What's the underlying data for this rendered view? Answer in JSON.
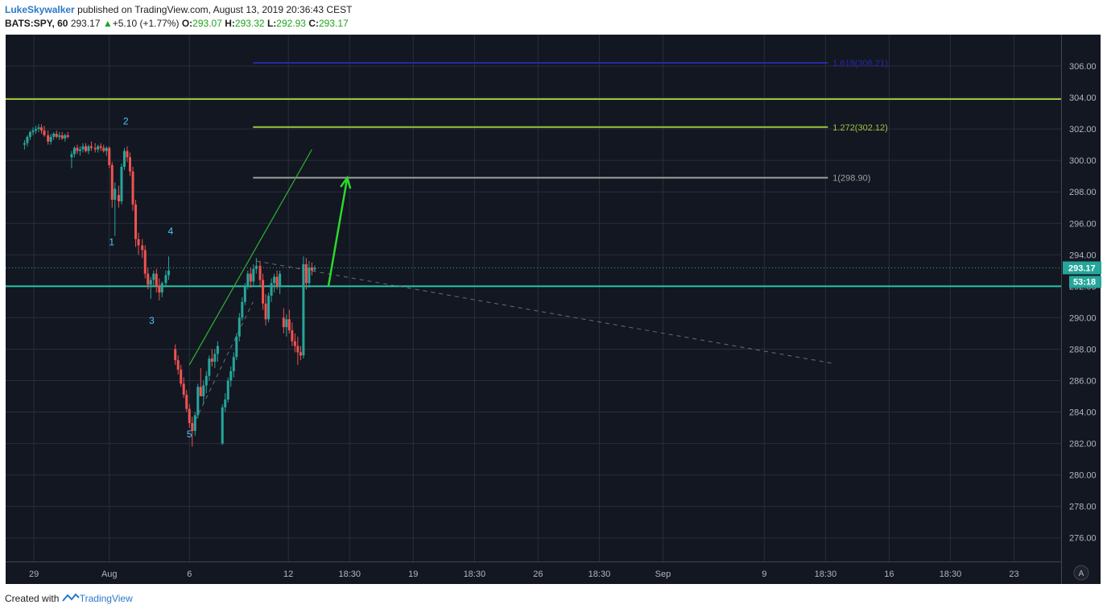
{
  "header": {
    "author": "LukeSkywalker",
    "published_text": "published on TradingView.com, August 13, 2019 20:36:43 CEST",
    "symbol": "BATS:SPY, 60",
    "last": "293.17",
    "change": "+5.10 (+1.77%)",
    "o_label": "O:",
    "o": "293.07",
    "h_label": "H:",
    "h": "293.32",
    "l_label": "L:",
    "l": "292.93",
    "c_label": "C:",
    "c": "293.17"
  },
  "footer": {
    "created_with": "Created with",
    "brand": "TradingView"
  },
  "colors": {
    "background": "#131722",
    "grid": "#2a2e39",
    "up_candle": "#26a69a",
    "down_candle": "#ef5350",
    "wave_label": "#4fc3f7",
    "price_tag": "#26a69a",
    "fib_1618": "#2929a8",
    "fib_1272": "#9bc53d",
    "fib_1": "#9e9e9e",
    "resistance": "#9bc53d",
    "support": "#26c6a8",
    "target_arrow": "#2bd92b",
    "channel": "#2db52d"
  },
  "chart_data": {
    "type": "candlestick",
    "ylim": [
      274.5,
      308
    ],
    "y_ticks": [
      "306.00",
      "304.00",
      "302.00",
      "300.00",
      "298.00",
      "296.00",
      "294.00",
      "292.00",
      "290.00",
      "288.00",
      "286.00",
      "284.00",
      "282.00",
      "280.00",
      "278.00",
      "276.00"
    ],
    "x_ticks": [
      {
        "t": 0.4,
        "label": "29"
      },
      {
        "t": 3.6,
        "label": "Aug"
      },
      {
        "t": 7.0,
        "label": "6"
      },
      {
        "t": 11.2,
        "label": "12"
      },
      {
        "t": 13.8,
        "label": "18:30"
      },
      {
        "t": 16.5,
        "label": "19"
      },
      {
        "t": 19.1,
        "label": "18:30"
      },
      {
        "t": 21.8,
        "label": "26"
      },
      {
        "t": 24.4,
        "label": "18:30"
      },
      {
        "t": 27.1,
        "label": "Sep"
      },
      {
        "t": 31.4,
        "label": "9"
      },
      {
        "t": 34.0,
        "label": "18:30"
      },
      {
        "t": 36.7,
        "label": "16"
      },
      {
        "t": 39.3,
        "label": "18:30"
      },
      {
        "t": 42.0,
        "label": "23"
      }
    ],
    "x_range": [
      -0.8,
      44.0
    ],
    "candles": [
      [
        0.0,
        301.0,
        301.3,
        300.7,
        301.1
      ],
      [
        0.12,
        301.1,
        301.6,
        300.9,
        301.5
      ],
      [
        0.24,
        301.5,
        301.9,
        301.3,
        301.8
      ],
      [
        0.36,
        301.8,
        302.1,
        301.6,
        301.9
      ],
      [
        0.48,
        301.9,
        302.2,
        301.7,
        302.0
      ],
      [
        0.6,
        302.0,
        302.3,
        301.8,
        302.1
      ],
      [
        0.72,
        302.1,
        302.3,
        301.7,
        301.9
      ],
      [
        0.84,
        301.9,
        302.2,
        301.5,
        301.6
      ],
      [
        1.0,
        301.6,
        301.9,
        301.0,
        301.2
      ],
      [
        1.12,
        301.2,
        301.7,
        301.0,
        301.5
      ],
      [
        1.24,
        301.5,
        301.8,
        301.3,
        301.7
      ],
      [
        1.36,
        301.7,
        301.9,
        301.4,
        301.5
      ],
      [
        1.48,
        301.5,
        301.8,
        301.3,
        301.6
      ],
      [
        1.6,
        301.6,
        301.8,
        301.3,
        301.4
      ],
      [
        1.72,
        301.4,
        301.7,
        301.2,
        301.6
      ],
      [
        1.84,
        301.6,
        301.8,
        301.4,
        301.5
      ],
      [
        2.0,
        300.2,
        300.6,
        299.5,
        300.4
      ],
      [
        2.12,
        300.4,
        300.9,
        300.2,
        300.8
      ],
      [
        2.24,
        300.8,
        301.0,
        300.4,
        300.6
      ],
      [
        2.36,
        300.6,
        300.9,
        300.3,
        300.7
      ],
      [
        2.48,
        300.7,
        301.1,
        300.5,
        300.9
      ],
      [
        2.6,
        300.9,
        301.1,
        300.5,
        300.6
      ],
      [
        2.72,
        300.6,
        301.0,
        300.4,
        300.9
      ],
      [
        2.84,
        300.9,
        301.2,
        300.6,
        300.8
      ],
      [
        3.0,
        300.8,
        301.1,
        300.5,
        300.7
      ],
      [
        3.12,
        300.7,
        301.0,
        300.5,
        300.9
      ],
      [
        3.24,
        300.9,
        301.1,
        300.6,
        300.8
      ],
      [
        3.36,
        300.8,
        301.0,
        300.5,
        300.6
      ],
      [
        3.48,
        300.6,
        300.9,
        300.3,
        300.8
      ],
      [
        3.6,
        300.8,
        300.9,
        299.5,
        299.7
      ],
      [
        3.72,
        299.7,
        299.9,
        297.0,
        297.5
      ],
      [
        3.84,
        297.5,
        298.6,
        295.2,
        298.2
      ],
      [
        4.0,
        297.8,
        298.4,
        297.0,
        297.4
      ],
      [
        4.12,
        297.4,
        299.8,
        297.2,
        299.6
      ],
      [
        4.24,
        299.6,
        300.8,
        299.4,
        300.6
      ],
      [
        4.36,
        300.6,
        300.9,
        299.9,
        300.2
      ],
      [
        4.48,
        300.2,
        300.5,
        299.0,
        299.3
      ],
      [
        4.6,
        299.3,
        299.6,
        296.8,
        297.2
      ],
      [
        4.72,
        297.2,
        297.5,
        294.5,
        295.0
      ],
      [
        4.84,
        295.0,
        295.4,
        294.0,
        294.6
      ],
      [
        5.0,
        294.6,
        295.0,
        293.8,
        294.3
      ],
      [
        5.12,
        294.3,
        294.6,
        292.5,
        292.8
      ],
      [
        5.24,
        292.8,
        293.2,
        291.8,
        292.1
      ],
      [
        5.36,
        292.1,
        292.6,
        291.2,
        292.4
      ],
      [
        5.48,
        292.4,
        293.0,
        292.0,
        292.8
      ],
      [
        5.6,
        292.8,
        293.1,
        291.6,
        292.0
      ],
      [
        5.72,
        292.0,
        292.5,
        291.1,
        291.6
      ],
      [
        5.84,
        291.6,
        292.3,
        291.3,
        292.2
      ],
      [
        6.0,
        292.2,
        293.0,
        292.0,
        292.7
      ],
      [
        6.12,
        292.7,
        293.9,
        292.4,
        293.0
      ],
      [
        6.4,
        288.0,
        288.3,
        287.0,
        287.3
      ],
      [
        6.52,
        287.3,
        287.6,
        286.4,
        286.7
      ],
      [
        6.64,
        286.7,
        287.0,
        285.6,
        285.8
      ],
      [
        6.76,
        285.8,
        286.2,
        284.9,
        285.1
      ],
      [
        6.88,
        285.1,
        285.4,
        284.0,
        284.2
      ],
      [
        7.0,
        284.2,
        284.5,
        283.0,
        283.3
      ],
      [
        7.12,
        283.3,
        283.7,
        281.8,
        282.8
      ],
      [
        7.24,
        282.8,
        284.0,
        282.5,
        283.8
      ],
      [
        7.36,
        283.8,
        285.8,
        283.6,
        285.6
      ],
      [
        7.48,
        285.6,
        286.8,
        285.2,
        285.0
      ],
      [
        7.6,
        285.0,
        286.0,
        284.5,
        285.7
      ],
      [
        7.72,
        285.7,
        286.6,
        285.2,
        286.3
      ],
      [
        7.84,
        286.3,
        287.6,
        286.0,
        287.4
      ],
      [
        7.96,
        287.4,
        288.0,
        286.9,
        287.2
      ],
      [
        8.08,
        287.2,
        288.0,
        286.8,
        287.7
      ],
      [
        8.2,
        287.7,
        288.5,
        287.2,
        288.2
      ],
      [
        8.4,
        282.0,
        284.5,
        281.9,
        284.3
      ],
      [
        8.52,
        284.3,
        285.2,
        284.0,
        284.8
      ],
      [
        8.64,
        284.8,
        286.2,
        284.6,
        286.0
      ],
      [
        8.76,
        286.0,
        286.9,
        285.6,
        286.6
      ],
      [
        8.88,
        286.6,
        287.8,
        286.2,
        287.5
      ],
      [
        9.0,
        287.5,
        289.0,
        287.3,
        288.8
      ],
      [
        9.12,
        288.8,
        290.3,
        288.5,
        290.0
      ],
      [
        9.24,
        290.0,
        291.3,
        289.8,
        291.0
      ],
      [
        9.36,
        291.0,
        292.2,
        290.8,
        292.0
      ],
      [
        9.48,
        292.0,
        293.0,
        291.8,
        292.8
      ],
      [
        9.6,
        292.8,
        293.2,
        291.9,
        292.3
      ],
      [
        9.72,
        292.3,
        293.4,
        292.0,
        293.1
      ],
      [
        9.84,
        293.1,
        293.8,
        292.8,
        293.3
      ],
      [
        10.0,
        293.3,
        293.6,
        292.0,
        292.4
      ],
      [
        10.12,
        292.4,
        292.8,
        290.5,
        290.9
      ],
      [
        10.24,
        290.9,
        291.5,
        289.5,
        289.9
      ],
      [
        10.36,
        289.9,
        291.6,
        289.7,
        291.4
      ],
      [
        10.48,
        291.4,
        292.5,
        291.0,
        292.2
      ],
      [
        10.6,
        292.2,
        292.8,
        291.6,
        292.6
      ],
      [
        10.72,
        292.6,
        293.0,
        291.8,
        292.0
      ],
      [
        10.84,
        292.0,
        293.0,
        291.5,
        292.8
      ],
      [
        11.0,
        290.0,
        290.6,
        289.0,
        289.4
      ],
      [
        11.12,
        289.4,
        290.2,
        288.8,
        289.9
      ],
      [
        11.24,
        289.9,
        290.5,
        289.0,
        289.2
      ],
      [
        11.36,
        289.2,
        289.7,
        288.2,
        288.5
      ],
      [
        11.48,
        288.5,
        289.0,
        287.8,
        288.2
      ],
      [
        11.6,
        288.2,
        288.8,
        287.0,
        287.8
      ],
      [
        11.72,
        287.8,
        288.2,
        287.3,
        287.6
      ],
      [
        11.84,
        287.6,
        293.9,
        287.4,
        293.4
      ],
      [
        11.96,
        293.4,
        293.8,
        291.8,
        292.2
      ],
      [
        12.08,
        292.2,
        293.6,
        291.9,
        293.2
      ],
      [
        12.2,
        293.2,
        293.5,
        292.7,
        293.0
      ],
      [
        12.32,
        293.07,
        293.32,
        292.93,
        293.17
      ]
    ],
    "levels": [
      {
        "name": "resistance",
        "y": 303.9,
        "x_from": -0.8,
        "x_to": 44.0,
        "label": ""
      },
      {
        "name": "fib-1618",
        "y": 306.21,
        "x_from": 9.7,
        "x_to": 34.1,
        "label": "1.618(306.21)"
      },
      {
        "name": "fib-1272",
        "y": 302.12,
        "x_from": 9.7,
        "x_to": 34.1,
        "label": "1.272(302.12)"
      },
      {
        "name": "fib-1",
        "y": 298.9,
        "x_from": 9.7,
        "x_to": 34.1,
        "label": "1(298.90)"
      },
      {
        "name": "support",
        "y": 292.0,
        "x_from": -0.8,
        "x_to": 44.0,
        "label": ""
      }
    ],
    "current_price": {
      "value": 293.17,
      "label": "293.17"
    },
    "countdown": {
      "label": "53:18"
    },
    "wave_labels": [
      {
        "t": 4.3,
        "y": 302.3,
        "label": "2"
      },
      {
        "t": 3.7,
        "y": 294.6,
        "label": "1"
      },
      {
        "t": 6.2,
        "y": 295.3,
        "label": "4"
      },
      {
        "t": 5.4,
        "y": 289.6,
        "label": "3"
      },
      {
        "t": 7.0,
        "y": 282.4,
        "label": "5"
      }
    ],
    "channel_line": {
      "from": [
        7.0,
        287.0
      ],
      "to": [
        12.2,
        300.7
      ]
    },
    "dashed_trend": {
      "from": [
        9.85,
        293.6
      ],
      "to": [
        34.3,
        287.1
      ]
    },
    "dashed_channel": {
      "from": [
        7.1,
        283.0
      ],
      "to": [
        9.7,
        291.0
      ]
    },
    "target_arrow": {
      "from": [
        12.9,
        292.0
      ],
      "to": [
        13.7,
        298.9
      ]
    }
  }
}
